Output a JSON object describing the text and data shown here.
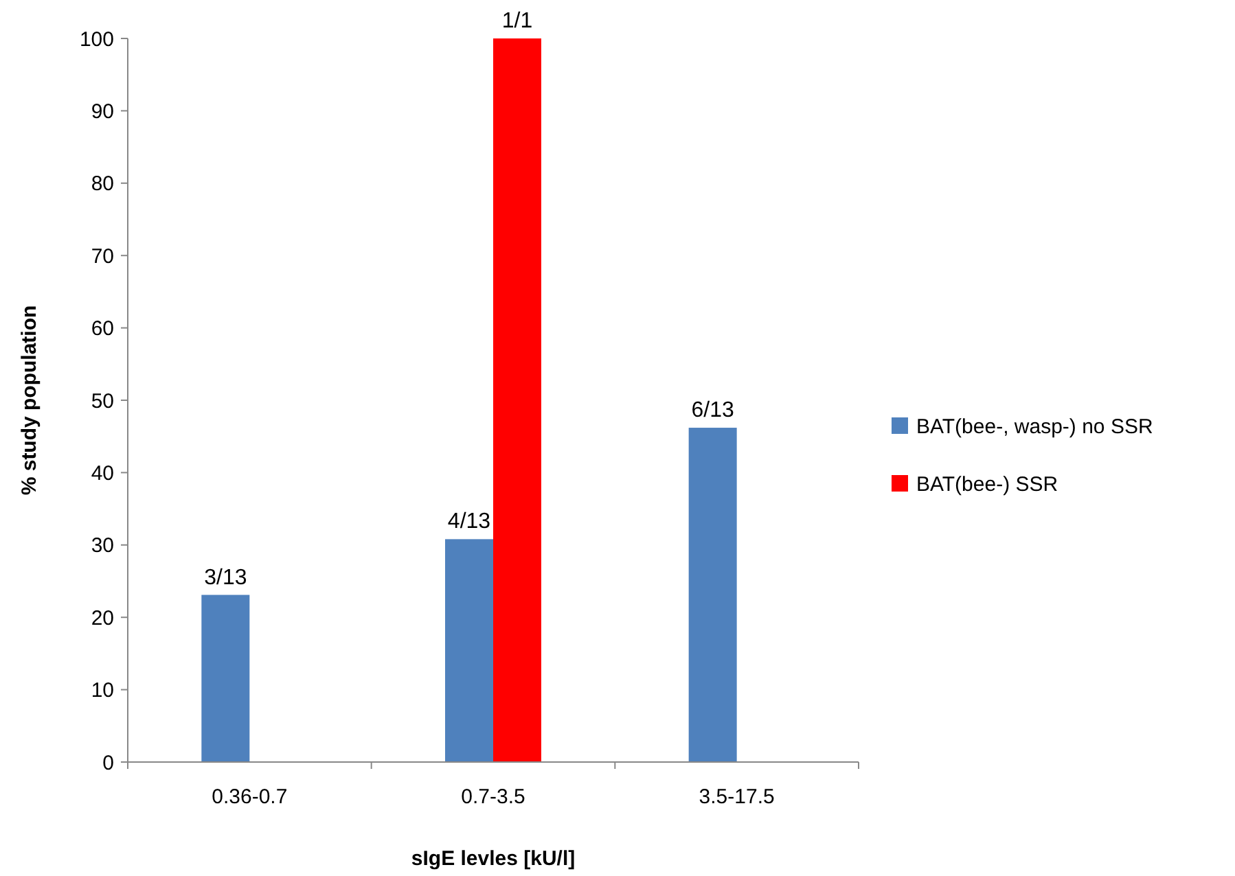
{
  "chart_data": {
    "type": "bar",
    "xlabel": "sIgE levles [kU/l]",
    "ylabel": "% study population",
    "categories": [
      "0.36-0.7",
      "0.7-3.5",
      "3.5-17.5"
    ],
    "series": [
      {
        "name": "BAT(bee-, wasp-) no SSR",
        "color": "#4f81bd",
        "values": [
          23.1,
          30.8,
          46.2
        ],
        "value_labels": [
          "3/13",
          "4/13",
          "6/13"
        ]
      },
      {
        "name": "BAT(bee-) SSR",
        "color": "#ff0000",
        "values": [
          null,
          100,
          null
        ],
        "value_labels": [
          null,
          "1/1",
          null
        ]
      }
    ],
    "ylim": [
      0,
      100
    ],
    "yticks": [
      0,
      10,
      20,
      30,
      40,
      50,
      60,
      70,
      80,
      90,
      100
    ],
    "grid": false,
    "legend": "right"
  }
}
